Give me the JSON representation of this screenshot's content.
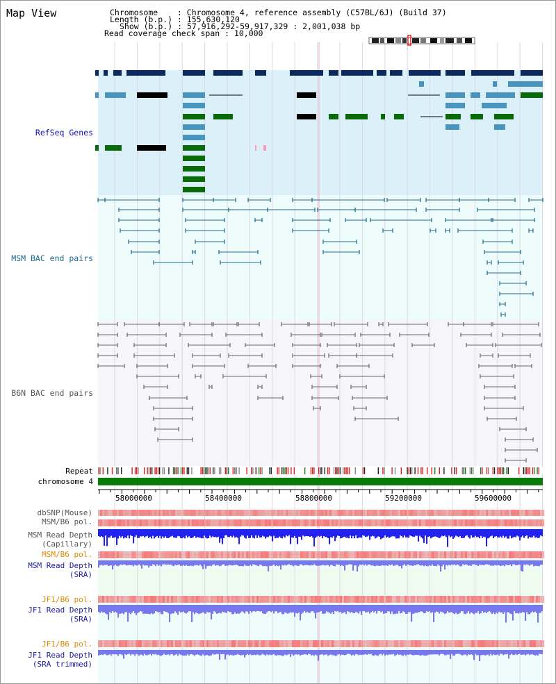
{
  "page_title": "Map View",
  "info": {
    "chromosome": "Chromosome    : Chromosome 4, reference assembly (C57BL/6J) (Build 37)",
    "length": "Length (b.p.) : 155,630,120",
    "show": "Show (b.p.) : 57,916,292-59,917,329 : 2,001,038 bp",
    "span": "Read coverage check span : 10,000"
  },
  "tracks": {
    "refseq": "RefSeq Genes",
    "msm_bac": "MSM BAC end pairs",
    "b6n_bac": "B6N BAC end pairs",
    "repeat": "Repeat",
    "chromosome": "chromosome 4"
  },
  "axis": {
    "ticks": [
      "58000000",
      "58400000",
      "58800000",
      "59200000",
      "59600000"
    ]
  },
  "lower_tracks": [
    {
      "lines": [
        "dbSNP(Mouse)"
      ],
      "color": "#555555"
    },
    {
      "lines": [
        "MSM/B6 pol."
      ],
      "color": "#555555"
    },
    {
      "lines": [
        "MSM Read Depth",
        "(Capillary)"
      ],
      "color": "#555555"
    },
    {
      "lines": [
        "MSM/B6 pol."
      ],
      "color": "#e08a00"
    },
    {
      "lines": [
        "MSM Read Depth",
        "(SRA)"
      ],
      "color": "#1a1aa0"
    },
    {
      "lines": [
        "JF1/B6 pol."
      ],
      "color": "#e08a00"
    },
    {
      "lines": [
        "JF1 Read Depth",
        "(SRA)"
      ],
      "color": "#1a1aa0"
    },
    {
      "lines": [
        "JF1/B6 pol."
      ],
      "color": "#e08a00"
    },
    {
      "lines": [
        "JF1 Read Depth",
        "(SRA trimmed)"
      ],
      "color": "#1a1aa0"
    }
  ],
  "colors": {
    "refseq_bg": "#dcf0fa",
    "bac_bg": "#eefcfc",
    "gene_navy": "#0a2a60",
    "gene_blue": "#4a94c0",
    "gene_green": "#0a6a0a",
    "msm_link": "#1e6a8e",
    "b6n_link": "#666666",
    "depth_blue": "#2222ee",
    "depth_violet": "#7777ee"
  }
}
